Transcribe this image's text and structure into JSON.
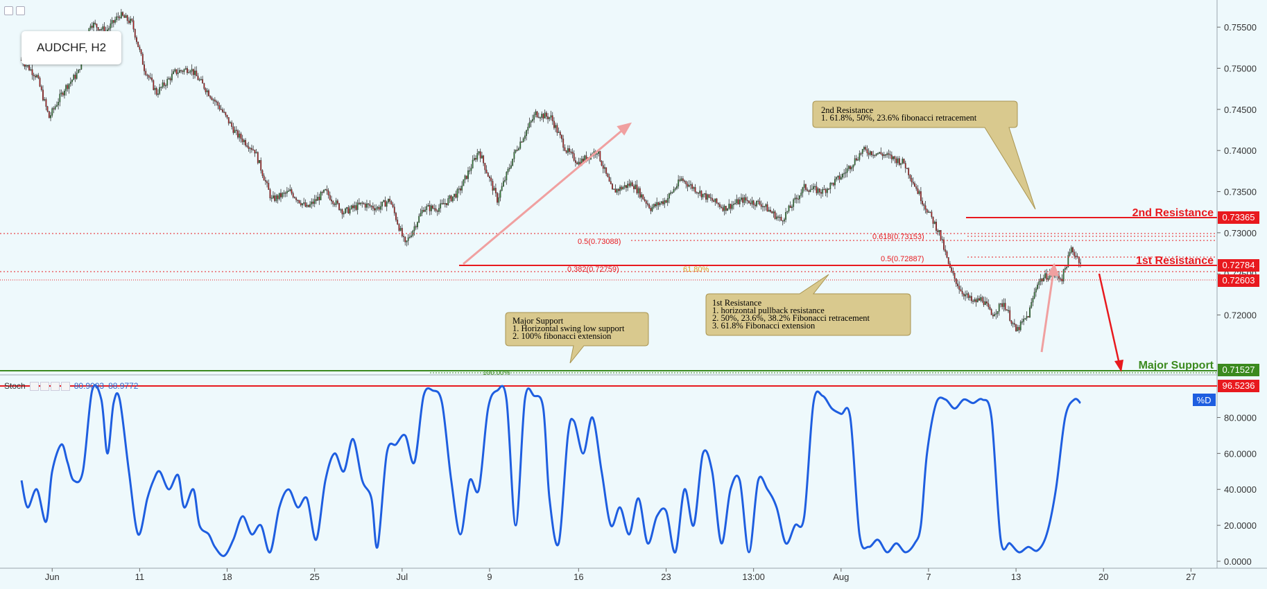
{
  "symbol": "AUDCHF, H2",
  "indicator": {
    "name": "Stoch",
    "value1": "80.9003",
    "value2": "88.9772",
    "series_label": "%D"
  },
  "levels": {
    "resistance2": {
      "label": "2nd Resistance",
      "price": "0.73365",
      "color": "#e8191e"
    },
    "resistance1": {
      "label": "1st Resistance",
      "price": "0.72784",
      "color": "#e8191e"
    },
    "last_price": {
      "price": "0.72603",
      "color": "#e8191e"
    },
    "support": {
      "label": "Major Support",
      "price": "0.71527",
      "color": "#3b8a1e"
    },
    "stoch_level": {
      "price": "96.5236",
      "color": "#e8191e"
    }
  },
  "fib_labels": {
    "f0618": "0.618(0.73153)",
    "f05a": "0.5(0.73088)",
    "f05b": "0.5(0.72887)",
    "f0382": "0.382(0.72759)",
    "f618ext": "61.80%",
    "f100": "100.00%"
  },
  "callouts": {
    "res2": {
      "lines": [
        "2nd Resistance",
        "1. 61.8%, 50%, 23.6% fibonacci retracement"
      ]
    },
    "res1": {
      "lines": [
        "1st Resistance",
        "1. horizontal pullback resistance",
        "2. 50%, 23.6%, 38.2% Fibonacci retracement",
        "3. 61.8% Fibonacci extension"
      ]
    },
    "support": {
      "lines": [
        "Major Support",
        "1. Horizontal swing low support",
        "2. 100% fibonacci extension"
      ]
    }
  },
  "colors": {
    "background": "#eef9fc",
    "up": "#2e7d32",
    "down": "#b71c1c",
    "stoch": "#1e5ee0",
    "callout_fill": "#d9c98e",
    "callout_stroke": "#a89450"
  },
  "chart_data": [
    {
      "type": "candlestick",
      "title": "AUDCHF, H2",
      "y_ticks": [
        "0.75500",
        "0.75000",
        "0.74500",
        "0.74000",
        "0.73500",
        "0.73000",
        "0.72500",
        "0.72000"
      ],
      "y_tick_values": [
        0.755,
        0.75,
        0.745,
        0.74,
        0.735,
        0.73,
        0.725,
        0.72
      ],
      "ylim": [
        0.7128,
        0.7583
      ],
      "x_ticks": [
        "Jun",
        "11",
        "18",
        "25",
        "Jul",
        "9",
        "16",
        "23",
        "13:00",
        "Aug",
        "7",
        "13",
        "20",
        "27"
      ],
      "x_tick_index": [
        20,
        77,
        134,
        191,
        248,
        305,
        363,
        420,
        477,
        534,
        591,
        648,
        705,
        762
      ],
      "x_range": [
        -14,
        779
      ],
      "close_path_index": [
        0,
        10,
        18,
        28,
        37,
        45,
        55,
        64,
        72,
        80,
        88,
        100,
        110,
        122,
        130,
        140,
        152,
        163,
        175,
        186,
        198,
        210,
        222,
        232,
        240,
        250,
        262,
        272,
        285,
        298,
        310,
        322,
        335,
        345,
        355,
        363,
        375,
        385,
        398,
        410,
        420,
        430,
        445,
        458,
        470,
        482,
        495,
        510,
        522,
        535,
        548,
        562,
        575,
        588,
        598,
        605,
        612,
        620,
        626,
        632,
        640,
        648,
        656,
        662,
        670,
        678,
        684,
        690
      ],
      "close_path": [
        0.751,
        0.749,
        0.744,
        0.7475,
        0.7495,
        0.7555,
        0.7545,
        0.7565,
        0.7555,
        0.75,
        0.747,
        0.7495,
        0.75,
        0.747,
        0.745,
        0.742,
        0.74,
        0.734,
        0.735,
        0.733,
        0.735,
        0.7325,
        0.7335,
        0.733,
        0.734,
        0.7285,
        0.733,
        0.733,
        0.735,
        0.74,
        0.734,
        0.74,
        0.7445,
        0.744,
        0.74,
        0.7385,
        0.74,
        0.735,
        0.736,
        0.733,
        0.734,
        0.7365,
        0.7345,
        0.733,
        0.734,
        0.7335,
        0.7315,
        0.7355,
        0.735,
        0.737,
        0.74,
        0.7395,
        0.7385,
        0.7335,
        0.73,
        0.7255,
        0.723,
        0.7215,
        0.722,
        0.72,
        0.7215,
        0.718,
        0.72,
        0.724,
        0.725,
        0.7245,
        0.728,
        0.7265
      ]
    },
    {
      "type": "line",
      "title": "Stoch",
      "series_name": "%D",
      "y_ticks": [
        "80.0000",
        "60.0000",
        "40.0000",
        "20.0000",
        "0.0000"
      ],
      "y_tick_values": [
        80,
        60,
        40,
        20,
        0
      ],
      "ylim": [
        0,
        101
      ],
      "x": [
        0,
        4,
        10,
        16,
        20,
        26,
        30,
        34,
        40,
        46,
        52,
        56,
        60,
        64,
        70,
        76,
        82,
        86,
        90,
        96,
        102,
        106,
        112,
        116,
        122,
        126,
        132,
        138,
        144,
        150,
        156,
        162,
        168,
        174,
        180,
        186,
        192,
        198,
        204,
        210,
        216,
        222,
        228,
        232,
        238,
        244,
        250,
        256,
        262,
        268,
        274,
        280,
        286,
        292,
        298,
        304,
        310,
        316,
        322,
        328,
        334,
        340,
        344,
        350,
        356,
        360,
        366,
        372,
        378,
        384,
        390,
        396,
        402,
        408,
        414,
        420,
        426,
        432,
        438,
        444,
        450,
        456,
        462,
        468,
        474,
        480,
        486,
        492,
        498,
        504,
        510,
        516,
        522,
        528,
        534,
        540,
        546,
        552,
        558,
        564,
        570,
        576,
        582,
        586,
        590,
        596,
        602,
        608,
        614,
        620,
        626,
        632,
        638,
        644,
        650,
        656,
        662,
        668,
        674,
        680,
        686,
        690
      ],
      "values": [
        45,
        30,
        40,
        22,
        50,
        65,
        55,
        45,
        50,
        95,
        90,
        60,
        88,
        90,
        50,
        15,
        35,
        45,
        50,
        40,
        48,
        30,
        40,
        20,
        15,
        8,
        3,
        12,
        25,
        15,
        20,
        5,
        30,
        40,
        30,
        35,
        12,
        45,
        60,
        50,
        68,
        45,
        35,
        8,
        60,
        65,
        70,
        55,
        92,
        95,
        88,
        45,
        15,
        45,
        40,
        85,
        95,
        90,
        20,
        90,
        92,
        85,
        35,
        10,
        70,
        78,
        60,
        80,
        50,
        20,
        30,
        15,
        35,
        10,
        25,
        28,
        5,
        40,
        20,
        60,
        50,
        10,
        40,
        45,
        5,
        45,
        40,
        30,
        10,
        20,
        25,
        88,
        92,
        85,
        82,
        80,
        15,
        8,
        12,
        5,
        10,
        5,
        10,
        20,
        60,
        88,
        90,
        85,
        90,
        88,
        90,
        80,
        12,
        10,
        5,
        8,
        6,
        15,
        40,
        80,
        90,
        88
      ]
    }
  ]
}
